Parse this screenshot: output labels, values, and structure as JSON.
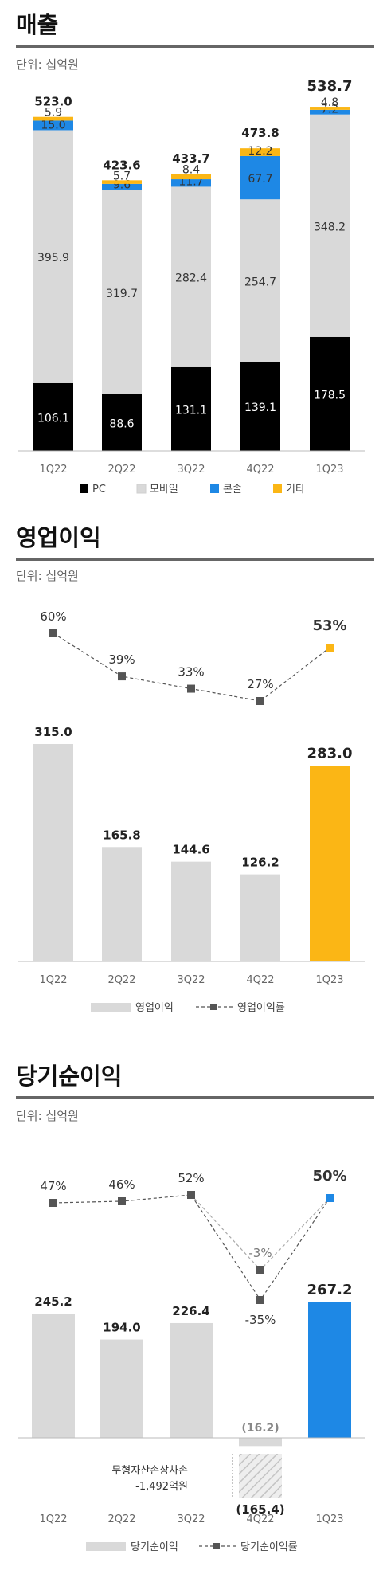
{
  "sections": {
    "revenue": {
      "title": "매출",
      "unit": "단위: 십억원"
    },
    "op": {
      "title": "영업이익",
      "unit": "단위: 십억원"
    },
    "net": {
      "title": "당기순이익",
      "unit": "단위: 십억원"
    }
  },
  "colors": {
    "pc": "#000000",
    "mobile": "#d9d9d9",
    "console": "#1e88e5",
    "other": "#fbb615",
    "bar_gray": "#d9d9d9",
    "op_highlight": "#fbb615",
    "net_highlight": "#1e88e5",
    "line": "#555555",
    "axis": "#bbbbbb"
  },
  "chart_data": [
    {
      "type": "bar",
      "stacked": true,
      "categories": [
        "1Q22",
        "2Q22",
        "3Q22",
        "4Q22",
        "1Q23"
      ],
      "series": [
        {
          "name": "PC",
          "values": [
            106.1,
            88.6,
            131.1,
            139.1,
            178.5
          ]
        },
        {
          "name": "모바일",
          "values": [
            395.9,
            319.7,
            282.4,
            254.7,
            348.2
          ]
        },
        {
          "name": "콘솔",
          "values": [
            15.0,
            9.6,
            11.7,
            67.7,
            7.2
          ]
        },
        {
          "name": "기타",
          "values": [
            5.9,
            5.7,
            8.4,
            12.2,
            4.8
          ]
        }
      ],
      "totals": [
        523.0,
        423.6,
        433.7,
        473.8,
        538.7
      ],
      "legend_position": "bottom"
    },
    {
      "type": "bar",
      "categories": [
        "1Q22",
        "2Q22",
        "3Q22",
        "4Q22",
        "1Q23"
      ],
      "series": [
        {
          "name": "영업이익",
          "values": [
            315.0,
            165.8,
            144.6,
            126.2,
            283.0
          ]
        }
      ],
      "line_series": {
        "name": "영업이익률",
        "values": [
          60,
          39,
          33,
          27,
          53
        ],
        "labels": [
          "60%",
          "39%",
          "33%",
          "27%",
          "53%"
        ]
      },
      "legend_position": "bottom"
    },
    {
      "type": "bar",
      "categories": [
        "1Q22",
        "2Q22",
        "3Q22",
        "4Q22",
        "1Q23"
      ],
      "series": [
        {
          "name": "당기순이익",
          "values": [
            245.2,
            194.0,
            226.4,
            -16.2,
            267.2
          ]
        }
      ],
      "labels": [
        "245.2",
        "194.0",
        "226.4",
        "(16.2)",
        "267.2"
      ],
      "adjusted": {
        "category": "4Q22",
        "value": -165.4,
        "label": "(165.4)",
        "note": [
          "무형자산손상차손",
          "-1,492억원"
        ]
      },
      "line_series": {
        "name": "당기순이익률",
        "values": [
          47,
          46,
          52,
          -35,
          50
        ],
        "labels": [
          "47%",
          "46%",
          "52%",
          "-35%",
          "50%"
        ]
      },
      "line_alt": {
        "category": "4Q22",
        "value": -3,
        "label": "-3%"
      },
      "legend_position": "bottom"
    }
  ]
}
